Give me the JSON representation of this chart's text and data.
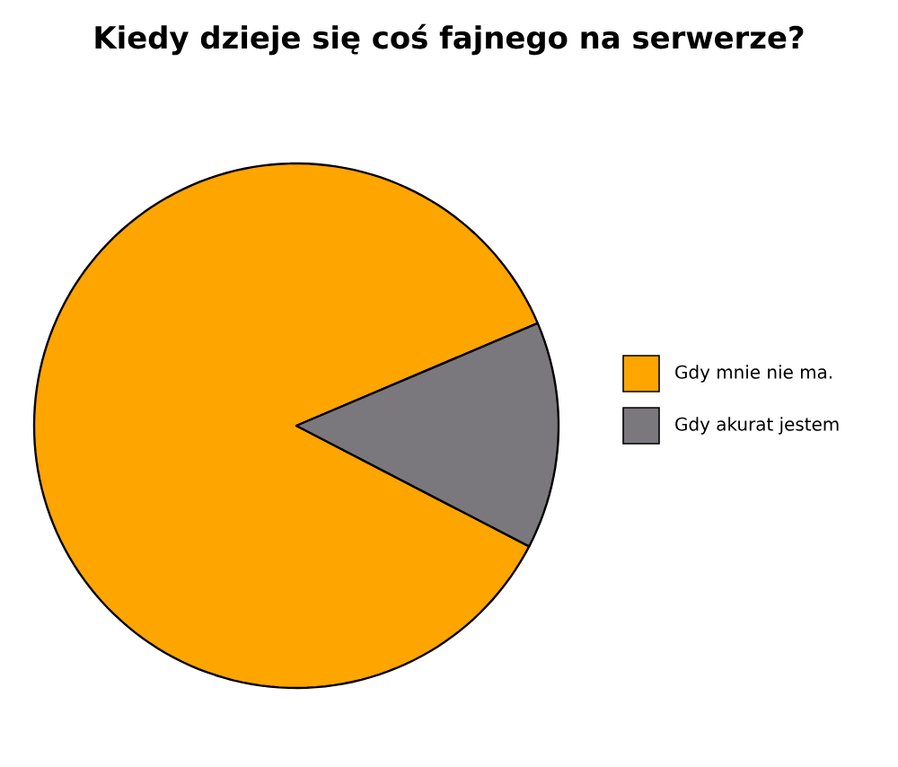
{
  "chart_data": {
    "type": "pie",
    "title": "Kiedy dzieje się coś fajnego na serwerze?",
    "categories": [
      "Gdy mnie nie ma.",
      "Gdy akurat jestem"
    ],
    "values": [
      86,
      14
    ],
    "colors": [
      "#ffa500",
      "#7a787d"
    ],
    "legend": "right"
  }
}
